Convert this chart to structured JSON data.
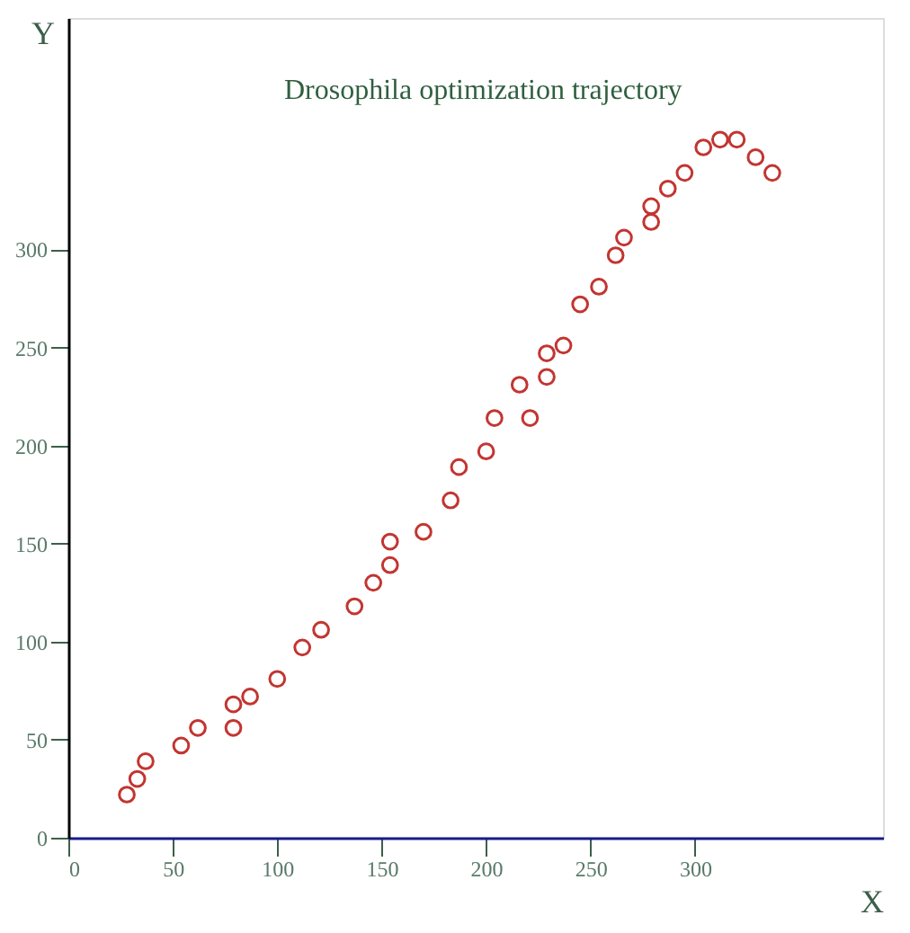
{
  "chart_data": {
    "type": "scatter",
    "title": "Drosophila optimization trajectory",
    "xlabel": "X",
    "ylabel": "Y",
    "x": [
      28,
      33,
      37,
      54,
      62,
      79,
      79,
      87,
      100,
      112,
      121,
      137,
      146,
      154,
      154,
      170,
      183,
      187,
      200,
      204,
      221,
      216,
      229,
      229,
      237,
      245,
      254,
      262,
      266,
      279,
      279,
      287,
      295,
      304,
      312,
      320,
      329,
      337
    ],
    "series": [
      {
        "color": "#c23531",
        "values": [
          22,
          30,
          39,
          47,
          56,
          56,
          68,
          72,
          81,
          97,
          106,
          118,
          130,
          139,
          151,
          156,
          172,
          189,
          197,
          214,
          214,
          231,
          235,
          247,
          251,
          272,
          281,
          297,
          306,
          314,
          322,
          331,
          339,
          352,
          356,
          356,
          347,
          339
        ]
      }
    ],
    "xlim": [
      0,
      390
    ],
    "ylim": [
      0,
      418
    ],
    "xticks": [
      0,
      50,
      100,
      150,
      200,
      250,
      300
    ],
    "yticks": [
      0,
      50,
      100,
      150,
      200,
      250,
      300
    ],
    "grid": false,
    "marker": "circle"
  }
}
